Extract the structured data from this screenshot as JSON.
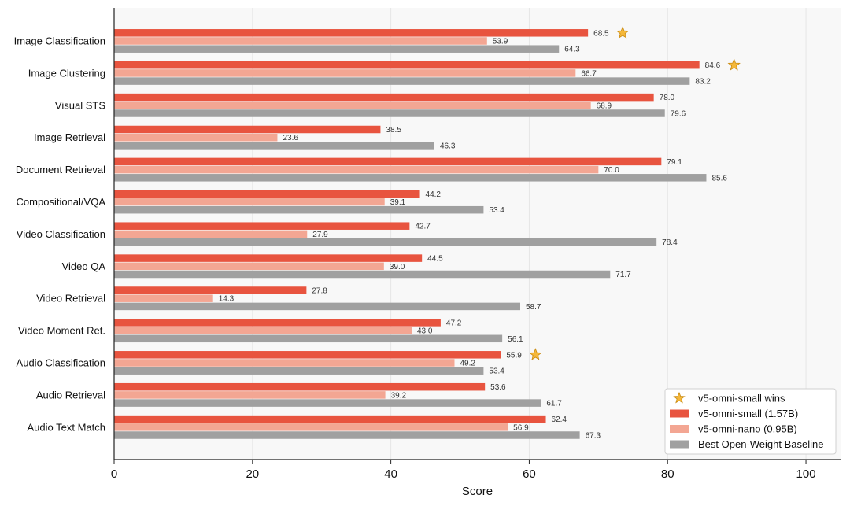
{
  "chart_data": {
    "type": "bar",
    "orientation": "horizontal",
    "xlabel": "Score",
    "xlim": [
      0,
      105
    ],
    "xticks": [
      0,
      20,
      40,
      60,
      80,
      100
    ],
    "grid": true,
    "legend_position": "bottom-right",
    "categories": [
      "Image Classification",
      "Image Clustering",
      "Visual STS",
      "Image Retrieval",
      "Document Retrieval",
      "Compositional/VQA",
      "Video Classification",
      "Video QA",
      "Video Retrieval",
      "Video Moment Ret.",
      "Audio Classification",
      "Audio Retrieval",
      "Audio Text Match"
    ],
    "series": [
      {
        "name": "v5-omni-small (1.57B)",
        "color": "#e8543f",
        "values": [
          68.5,
          84.6,
          78.0,
          38.5,
          79.1,
          44.2,
          42.7,
          44.5,
          27.8,
          47.2,
          55.9,
          53.6,
          62.4
        ]
      },
      {
        "name": "v5-omni-nano (0.95B)",
        "color": "#f3a693",
        "values": [
          53.9,
          66.7,
          68.9,
          23.6,
          70.0,
          39.1,
          27.9,
          39.0,
          14.3,
          43.0,
          49.2,
          39.2,
          56.9
        ]
      },
      {
        "name": "Best Open-Weight Baseline",
        "color": "#a0a0a0",
        "values": [
          64.3,
          83.2,
          79.6,
          46.3,
          85.6,
          53.4,
          78.4,
          71.7,
          58.7,
          56.1,
          53.4,
          61.7,
          67.3
        ]
      }
    ],
    "wins_marker": {
      "name": "v5-omni-small wins",
      "color": "#f5b83a",
      "categories": [
        "Image Classification",
        "Image Clustering",
        "Audio Classification"
      ]
    }
  }
}
